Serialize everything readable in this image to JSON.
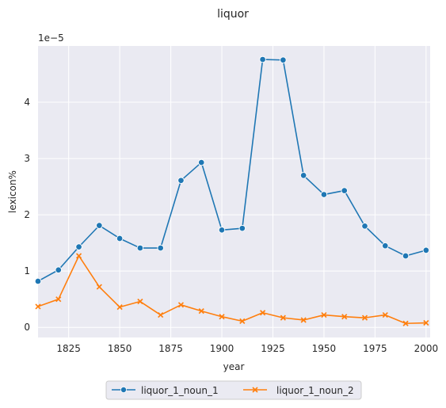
{
  "chart_data": {
    "type": "line",
    "title": "liquor",
    "xlabel": "year",
    "ylabel": "lexicon%",
    "y_offset_label": "1e−5",
    "xlim": [
      1810,
      2002
    ],
    "ylim": [
      -0.18,
      5.0
    ],
    "xticks": [
      1825,
      1850,
      1875,
      1900,
      1925,
      1950,
      1975,
      2000
    ],
    "yticks": [
      0,
      1,
      2,
      3,
      4
    ],
    "grid": true,
    "legend_position": "bottom-center",
    "x": [
      1810,
      1820,
      1830,
      1840,
      1850,
      1860,
      1870,
      1880,
      1890,
      1900,
      1910,
      1920,
      1930,
      1940,
      1950,
      1960,
      1970,
      1980,
      1990,
      2000
    ],
    "series": [
      {
        "name": "liquor_1_noun_1",
        "color": "#1f77b4",
        "marker": "circle",
        "values": [
          0.82,
          1.02,
          1.43,
          1.81,
          1.58,
          1.41,
          1.41,
          2.61,
          2.93,
          1.73,
          1.76,
          4.76,
          4.75,
          2.7,
          2.36,
          2.43,
          1.8,
          1.45,
          1.27,
          1.37
        ]
      },
      {
        "name": "liquor_1_noun_2",
        "color": "#ff7f0e",
        "marker": "x",
        "values": [
          0.37,
          0.5,
          1.27,
          0.72,
          0.36,
          0.46,
          0.22,
          0.4,
          0.29,
          0.19,
          0.11,
          0.26,
          0.17,
          0.13,
          0.22,
          0.19,
          0.17,
          0.22,
          0.07,
          0.08
        ]
      }
    ]
  },
  "colors": {
    "plot_background": "#eaeaf2",
    "grid": "#ffffff",
    "text": "#262626"
  }
}
